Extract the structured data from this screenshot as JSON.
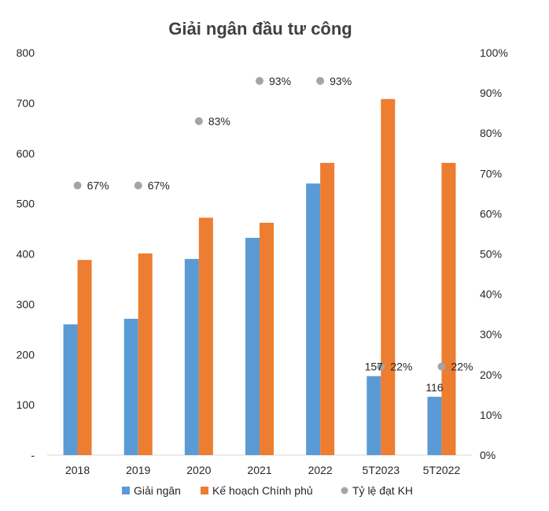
{
  "chart_data": {
    "type": "bar",
    "title": "Giải ngân đầu tư công",
    "categories": [
      "2018",
      "2019",
      "2020",
      "2021",
      "2022",
      "5T2023",
      "5T2022"
    ],
    "series": [
      {
        "name": "Giải ngân",
        "axis": "left",
        "kind": "bar",
        "color": "#5B9BD5",
        "values": [
          260,
          271,
          390,
          432,
          540,
          157,
          116
        ]
      },
      {
        "name": "Kế hoạch Chính phủ",
        "axis": "left",
        "kind": "bar",
        "color": "#ED7D31",
        "values": [
          388,
          401,
          472,
          462,
          581,
          708,
          581
        ]
      },
      {
        "name": "Tỷ lệ đạt KH",
        "axis": "right",
        "kind": "point",
        "color": "#A5A5A5",
        "values": [
          67,
          67,
          83,
          93,
          93,
          22,
          22
        ]
      }
    ],
    "data_labels": {
      "Giải ngân": [
        "",
        "",
        "",
        "",
        "",
        "157",
        "116"
      ],
      "Tỷ lệ đạt KH": [
        "67%",
        "67%",
        "83%",
        "93%",
        "93%",
        "22%",
        "22%"
      ]
    },
    "y_left": {
      "ylim": [
        0,
        800
      ],
      "ticks": [
        "-",
        "100",
        "200",
        "300",
        "400",
        "500",
        "600",
        "700",
        "800"
      ]
    },
    "y_right": {
      "ylim": [
        0,
        100
      ],
      "ticks": [
        "0%",
        "10%",
        "20%",
        "30%",
        "40%",
        "50%",
        "60%",
        "70%",
        "80%",
        "90%",
        "100%"
      ]
    },
    "grid": false,
    "legend_position": "bottom"
  }
}
